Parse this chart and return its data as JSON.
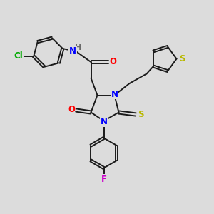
{
  "bg_color": "#dcdcdc",
  "bond_color": "#1a1a1a",
  "bond_width": 1.4,
  "atom_colors": {
    "N": "#0000ff",
    "O": "#ff0000",
    "S_yellow": "#b8b800",
    "Cl": "#00aa00",
    "F": "#cc00cc",
    "H_gray": "#6a6a6a"
  },
  "font_size": 8.5,
  "figsize": [
    3.0,
    3.0
  ],
  "dpi": 100,
  "xlim": [
    0,
    10
  ],
  "ylim": [
    0,
    10
  ]
}
